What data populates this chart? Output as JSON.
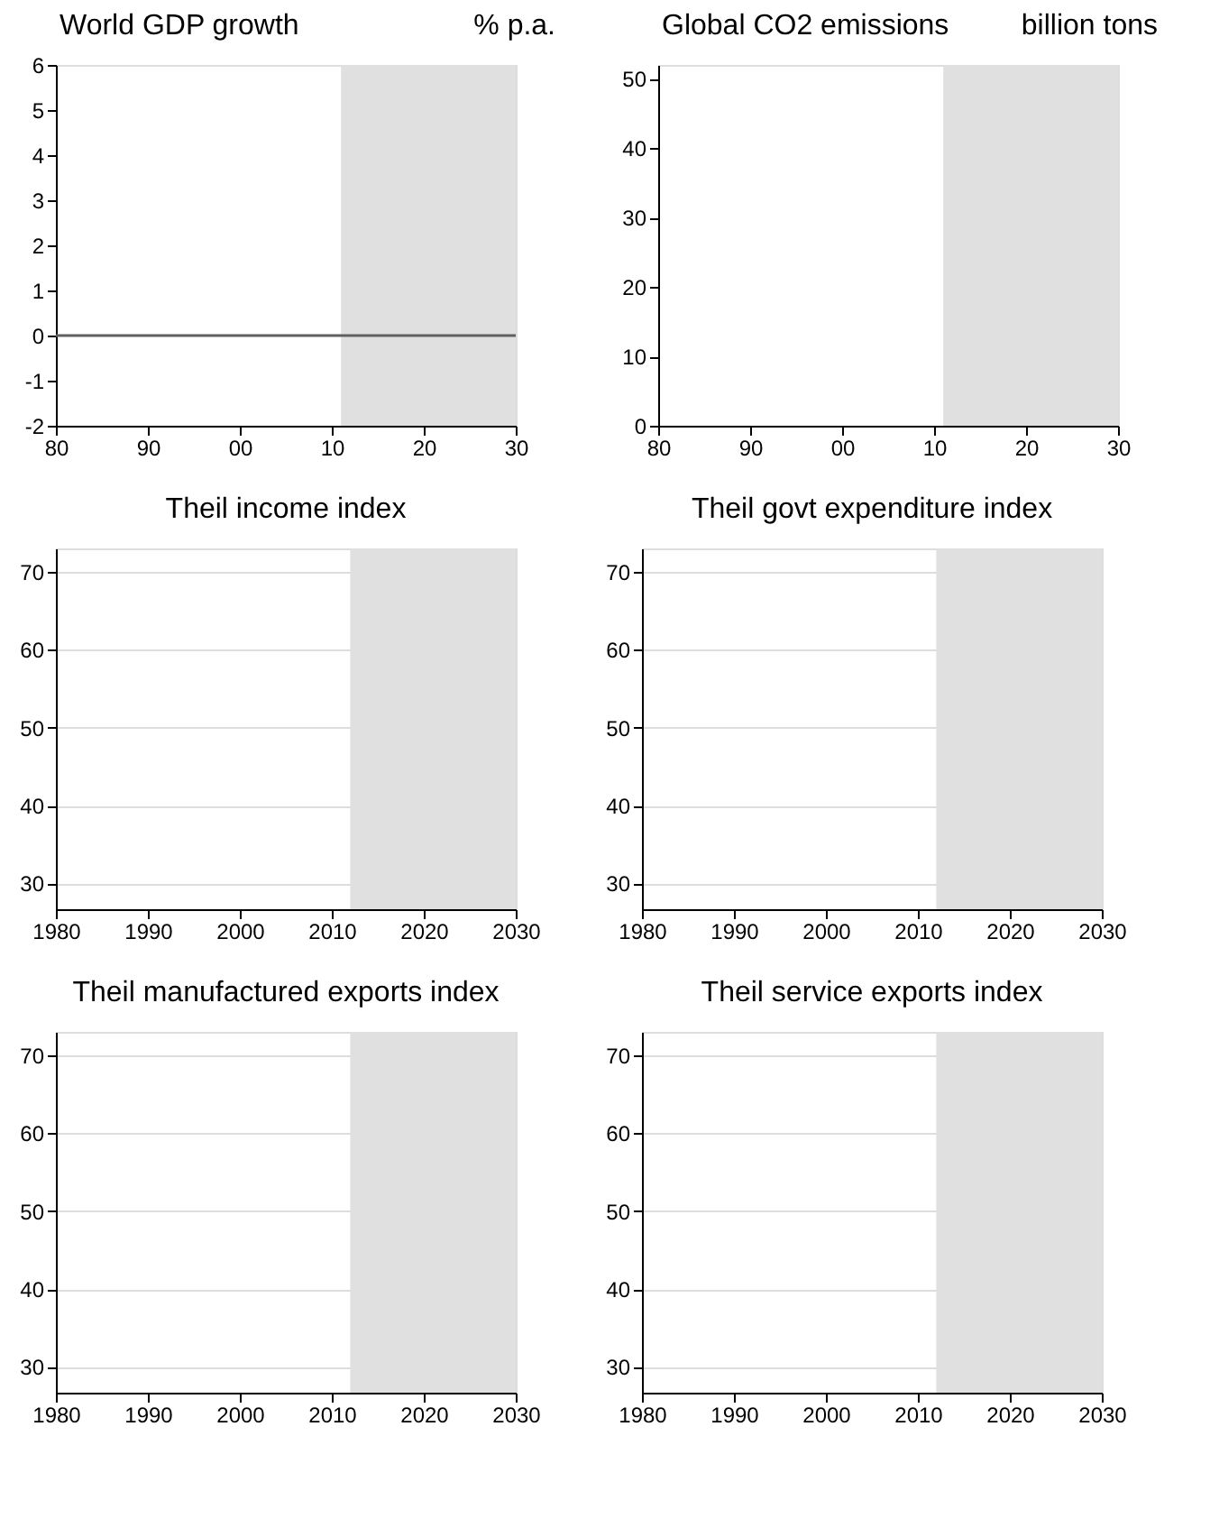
{
  "chart_data": [
    {
      "type": "line",
      "title": "World GDP growth",
      "annotations": [
        "% p.a."
      ],
      "xlim": [
        1980,
        2030
      ],
      "xticks": [
        {
          "value": 1980,
          "label": "80"
        },
        {
          "value": 1990,
          "label": "90"
        },
        {
          "value": 2000,
          "label": "00"
        },
        {
          "value": 2010,
          "label": "10"
        },
        {
          "value": 2020,
          "label": "20"
        },
        {
          "value": 2030,
          "label": "30"
        }
      ],
      "ylim": [
        -2,
        6
      ],
      "yticks": [
        -2,
        -1,
        0,
        1,
        2,
        3,
        4,
        5,
        6
      ],
      "grid": false,
      "bands": [
        {
          "axis": "x",
          "from": 2011,
          "to": 2030,
          "color": "#e0e0e0"
        }
      ],
      "ref_lines": [
        {
          "axis": "y",
          "value": 0,
          "color": "#606060"
        }
      ]
    },
    {
      "type": "line",
      "title": "Global CO2 emissions",
      "annotations": [
        "billion tons"
      ],
      "xlim": [
        1980,
        2030
      ],
      "xticks": [
        {
          "value": 1980,
          "label": "80"
        },
        {
          "value": 1990,
          "label": "90"
        },
        {
          "value": 2000,
          "label": "00"
        },
        {
          "value": 2010,
          "label": "10"
        },
        {
          "value": 2020,
          "label": "20"
        },
        {
          "value": 2030,
          "label": "30"
        }
      ],
      "ylim": [
        0,
        52
      ],
      "yticks": [
        0,
        10,
        20,
        30,
        40,
        50
      ],
      "grid": false,
      "bands": [
        {
          "axis": "x",
          "from": 2011,
          "to": 2030,
          "color": "#e0e0e0"
        }
      ]
    },
    {
      "type": "line",
      "title": "Theil income index",
      "xlim": [
        1980,
        2030
      ],
      "xticks": [
        1980,
        1990,
        2000,
        2010,
        2020,
        2030
      ],
      "ylim": [
        26.7,
        73
      ],
      "yticks": [
        30,
        40,
        50,
        60,
        70
      ],
      "grid": "y",
      "bands": [
        {
          "axis": "x",
          "from": 2012,
          "to": 2030,
          "color": "#e0e0e0"
        }
      ]
    },
    {
      "type": "line",
      "title": "Theil govt expenditure index",
      "xlim": [
        1980,
        2030
      ],
      "xticks": [
        1980,
        1990,
        2000,
        2010,
        2020,
        2030
      ],
      "ylim": [
        26.7,
        73
      ],
      "yticks": [
        30,
        40,
        50,
        60,
        70
      ],
      "grid": "y",
      "bands": [
        {
          "axis": "x",
          "from": 2012,
          "to": 2030,
          "color": "#e0e0e0"
        }
      ]
    },
    {
      "type": "line",
      "title": "Theil manufactured exports index",
      "xlim": [
        1980,
        2030
      ],
      "xticks": [
        1980,
        1990,
        2000,
        2010,
        2020,
        2030
      ],
      "ylim": [
        26.7,
        73
      ],
      "yticks": [
        30,
        40,
        50,
        60,
        70
      ],
      "grid": "y",
      "bands": [
        {
          "axis": "x",
          "from": 2012,
          "to": 2030,
          "color": "#e0e0e0"
        }
      ]
    },
    {
      "type": "line",
      "title": "Theil service exports index",
      "xlim": [
        1980,
        2030
      ],
      "xticks": [
        1980,
        1990,
        2000,
        2010,
        2020,
        2030
      ],
      "ylim": [
        26.7,
        73
      ],
      "yticks": [
        30,
        40,
        50,
        60,
        70
      ],
      "grid": "y",
      "bands": [
        {
          "axis": "x",
          "from": 2012,
          "to": 2030,
          "color": "#e0e0e0"
        }
      ]
    }
  ]
}
